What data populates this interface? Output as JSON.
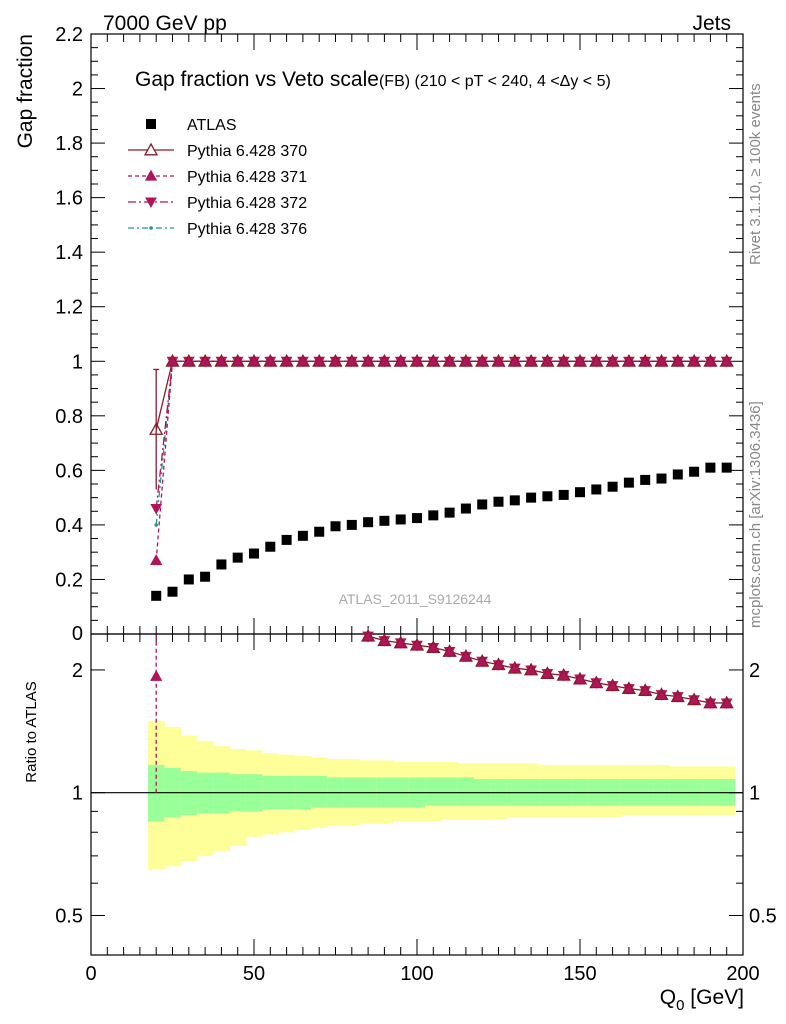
{
  "header": {
    "left": "7000 GeV pp",
    "right": "Jets"
  },
  "plot": {
    "title": "Gap fraction vs Veto scale",
    "subtitle": "(FB) (210 < pT < 240, 4 <Δy < 5)",
    "ylabel_top": "Gap fraction",
    "ylabel_bottom": "Ratio to ATLAS",
    "xlabel": "Q",
    "xlabel_sub": "0",
    "xlabel_unit": " [GeV]",
    "watermark": "ATLAS_2011_S9126244",
    "side_text_top": "Rivet 3.1.10, ≥ 100k events",
    "side_text_bottom": "mcplots.cern.ch [arXiv:1306.3436]"
  },
  "colors": {
    "atlas": "#000000",
    "p370": "#8b1a2c",
    "p371": "#b0145a",
    "p372": "#b0145a",
    "p376": "#1e9a8c",
    "band_inner": "#99ff99",
    "band_outer": "#ffff99"
  },
  "chart_data": [
    {
      "type": "scatter",
      "xlim": [
        0,
        200
      ],
      "ylim": [
        0,
        2.2
      ],
      "yticks": [
        0.2,
        0.4,
        0.6,
        0.8,
        1,
        1.2,
        1.4,
        1.6,
        1.8,
        2,
        2.2
      ],
      "ytick_labels": [
        "0.2",
        "0.4",
        "0.6",
        "0.8",
        "1",
        "1.2",
        "1.4",
        "1.6",
        "1.8",
        "2",
        "2.2"
      ],
      "axis_bottom_label": "0",
      "legend_position": "top-left",
      "series": [
        {
          "name": "ATLAS",
          "x": [
            20,
            25,
            30,
            35,
            40,
            45,
            50,
            55,
            60,
            65,
            70,
            75,
            80,
            85,
            90,
            95,
            100,
            105,
            110,
            115,
            120,
            125,
            130,
            135,
            140,
            145,
            150,
            155,
            160,
            165,
            170,
            175,
            180,
            185,
            190,
            195
          ],
          "y": [
            0.14,
            0.155,
            0.2,
            0.21,
            0.255,
            0.28,
            0.295,
            0.32,
            0.345,
            0.36,
            0.375,
            0.395,
            0.4,
            0.41,
            0.415,
            0.42,
            0.425,
            0.435,
            0.445,
            0.46,
            0.475,
            0.485,
            0.49,
            0.5,
            0.505,
            0.51,
            0.52,
            0.53,
            0.54,
            0.555,
            0.565,
            0.57,
            0.585,
            0.595,
            0.61,
            0.61
          ]
        },
        {
          "name": "Pythia 6.428 370",
          "x0": 20,
          "y0": 0.75,
          "err0": 0.22,
          "x": [
            25,
            30,
            35,
            40,
            45,
            50,
            55,
            60,
            65,
            70,
            75,
            80,
            85,
            90,
            95,
            100,
            105,
            110,
            115,
            120,
            125,
            130,
            135,
            140,
            145,
            150,
            155,
            160,
            165,
            170,
            175,
            180,
            185,
            190,
            195
          ],
          "yconst": 1.0
        },
        {
          "name": "Pythia 6.428 371",
          "x0": 20,
          "y0": 0.27,
          "x": [
            25,
            30,
            35,
            40,
            45,
            50,
            55,
            60,
            65,
            70,
            75,
            80,
            85,
            90,
            95,
            100,
            105,
            110,
            115,
            120,
            125,
            130,
            135,
            140,
            145,
            150,
            155,
            160,
            165,
            170,
            175,
            180,
            185,
            190,
            195
          ],
          "yconst": 1.0
        },
        {
          "name": "Pythia 6.428 372",
          "x0": 20,
          "y0": 0.46,
          "x": [
            25,
            30,
            35,
            40,
            45,
            50,
            55,
            60,
            65,
            70,
            75,
            80,
            85,
            90,
            95,
            100,
            105,
            110,
            115,
            120,
            125,
            130,
            135,
            140,
            145,
            150,
            155,
            160,
            165,
            170,
            175,
            180,
            185,
            190,
            195
          ],
          "yconst": 1.0
        },
        {
          "name": "Pythia 6.428 376",
          "x0": 20,
          "y0": 0.4,
          "x": [
            25,
            30,
            35,
            40,
            45,
            50,
            55,
            60,
            65,
            70,
            75,
            80,
            85,
            90,
            95,
            100,
            105,
            110,
            115,
            120,
            125,
            130,
            135,
            140,
            145,
            150,
            155,
            160,
            165,
            170,
            175,
            180,
            185,
            190,
            195
          ],
          "yconst": 1.0
        }
      ]
    },
    {
      "type": "line",
      "scale": "log",
      "ylim": [
        0.4,
        2.45
      ],
      "yticks": [
        0.5,
        1,
        2
      ],
      "ytick_labels": [
        "0.5",
        "1",
        "2"
      ],
      "xlim": [
        0,
        200
      ],
      "xticks": [
        0,
        50,
        100,
        150,
        200
      ],
      "xtick_labels": [
        "0",
        "50",
        "100",
        "150",
        "200"
      ],
      "ratio_x": [
        85,
        90,
        95,
        100,
        105,
        110,
        115,
        120,
        125,
        130,
        135,
        140,
        145,
        150,
        155,
        160,
        165,
        170,
        175,
        180,
        185,
        190,
        195
      ],
      "ratio_y": [
        2.42,
        2.36,
        2.33,
        2.3,
        2.27,
        2.22,
        2.16,
        2.1,
        2.06,
        2.02,
        2.0,
        1.96,
        1.94,
        1.9,
        1.86,
        1.83,
        1.8,
        1.78,
        1.74,
        1.72,
        1.69,
        1.66,
        1.66
      ],
      "ratio_x0": 20,
      "ratio_y0": 1.93,
      "band_edges": [
        17.5,
        22.5,
        27.5,
        32.5,
        37.5,
        42.5,
        47.5,
        52.5,
        57.5,
        62.5,
        67.5,
        72.5,
        77.5,
        82.5,
        87.5,
        92.5,
        97.5,
        102.5,
        107.5,
        112.5,
        117.5,
        122.5,
        127.5,
        132.5,
        137.5,
        142.5,
        147.5,
        152.5,
        157.5,
        162.5,
        167.5,
        172.5,
        177.5,
        182.5,
        187.5,
        192.5,
        197.5
      ],
      "inner_lo": [
        0.85,
        0.87,
        0.88,
        0.89,
        0.89,
        0.9,
        0.9,
        0.91,
        0.91,
        0.91,
        0.92,
        0.92,
        0.92,
        0.92,
        0.92,
        0.92,
        0.92,
        0.93,
        0.93,
        0.93,
        0.93,
        0.93,
        0.93,
        0.93,
        0.93,
        0.93,
        0.93,
        0.93,
        0.93,
        0.93,
        0.93,
        0.93,
        0.93,
        0.93,
        0.93,
        0.93
      ],
      "inner_hi": [
        1.17,
        1.15,
        1.13,
        1.12,
        1.12,
        1.11,
        1.11,
        1.1,
        1.1,
        1.1,
        1.1,
        1.09,
        1.09,
        1.09,
        1.09,
        1.09,
        1.09,
        1.09,
        1.09,
        1.09,
        1.08,
        1.08,
        1.08,
        1.08,
        1.08,
        1.08,
        1.08,
        1.08,
        1.08,
        1.08,
        1.08,
        1.08,
        1.08,
        1.08,
        1.08,
        1.08
      ],
      "outer_lo": [
        0.65,
        0.66,
        0.68,
        0.7,
        0.72,
        0.74,
        0.78,
        0.79,
        0.8,
        0.81,
        0.82,
        0.83,
        0.83,
        0.84,
        0.84,
        0.85,
        0.85,
        0.85,
        0.86,
        0.86,
        0.86,
        0.86,
        0.87,
        0.87,
        0.87,
        0.87,
        0.87,
        0.87,
        0.87,
        0.88,
        0.88,
        0.88,
        0.88,
        0.88,
        0.88,
        0.88
      ],
      "outer_hi": [
        1.5,
        1.45,
        1.38,
        1.34,
        1.3,
        1.28,
        1.27,
        1.25,
        1.24,
        1.23,
        1.22,
        1.21,
        1.21,
        1.2,
        1.2,
        1.19,
        1.19,
        1.19,
        1.19,
        1.18,
        1.18,
        1.18,
        1.18,
        1.18,
        1.17,
        1.17,
        1.17,
        1.17,
        1.17,
        1.17,
        1.17,
        1.17,
        1.16,
        1.16,
        1.16,
        1.16
      ]
    }
  ]
}
